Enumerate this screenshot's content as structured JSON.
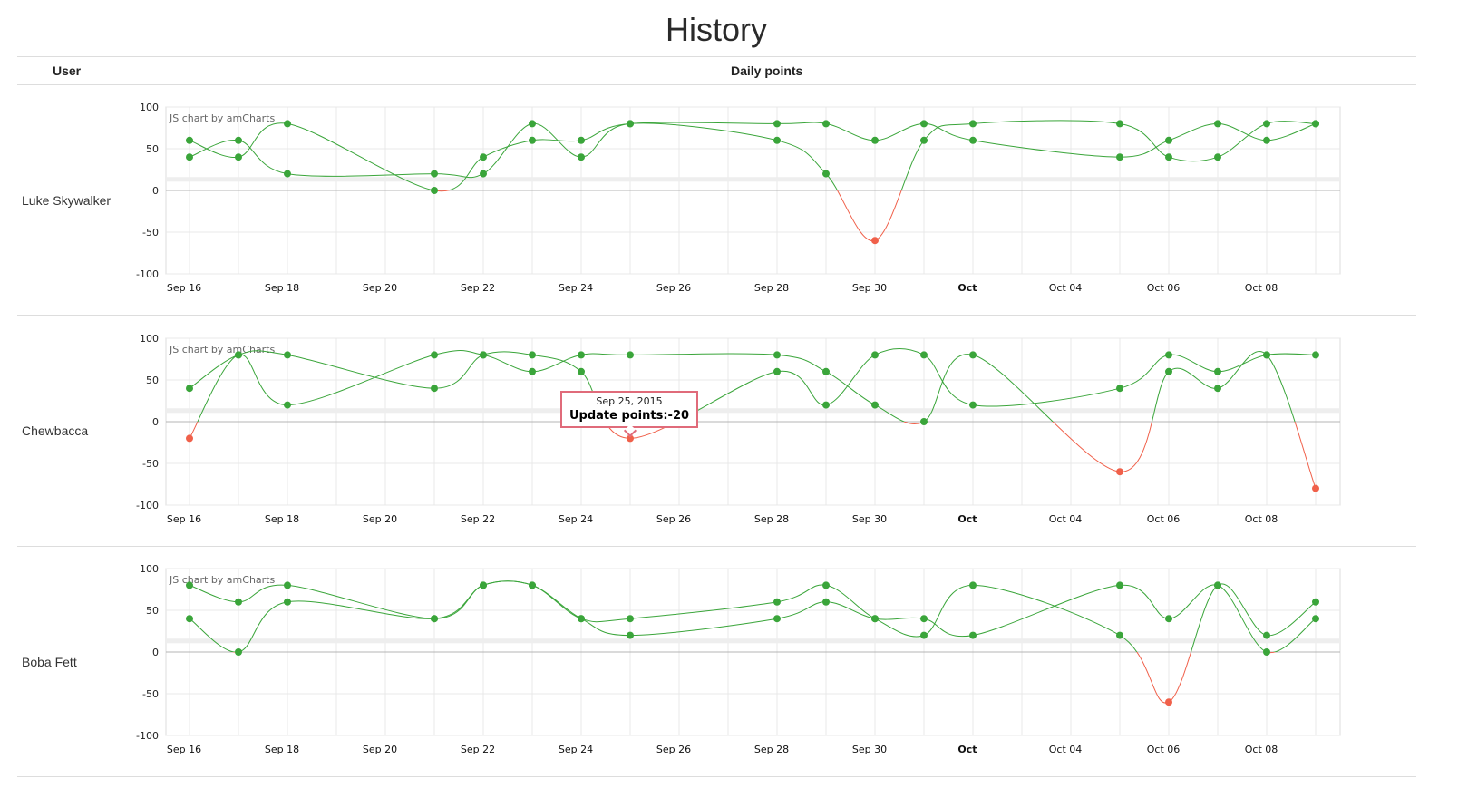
{
  "page": {
    "title": "History"
  },
  "table": {
    "col_user": "User",
    "col_points": "Daily points"
  },
  "colors": {
    "positive": "#3aa53a",
    "negative": "#f0604a",
    "tooltip_border": "#e06b7a"
  },
  "watermark": "JS chart by amCharts",
  "tooltip": {
    "date": "Sep 25, 2015",
    "value": "Update points:-20"
  },
  "chart_data": [
    {
      "user": "Luke Skywalker",
      "type": "line",
      "x_ticks": [
        "Sep 16",
        "Sep 18",
        "Sep 20",
        "Sep 22",
        "Sep 24",
        "Sep 26",
        "Sep 28",
        "Sep 30",
        "Oct",
        "Oct 04",
        "Oct 06",
        "Oct 08"
      ],
      "ylim": [
        -100,
        100
      ],
      "y_ticks": [
        100,
        50,
        0,
        -50,
        -100
      ],
      "series": [
        {
          "points": [
            [
              "2015-09-16",
              60
            ],
            [
              "2015-09-17",
              40
            ],
            [
              "2015-09-18",
              80
            ],
            [
              "2015-09-21",
              0
            ],
            [
              "2015-09-22",
              40
            ],
            [
              "2015-09-23",
              60
            ],
            [
              "2015-09-24",
              60
            ],
            [
              "2015-09-25",
              80
            ],
            [
              "2015-09-28",
              80
            ],
            [
              "2015-09-29",
              80
            ],
            [
              "2015-09-30",
              60
            ],
            [
              "2015-10-01",
              80
            ],
            [
              "2015-10-02",
              60
            ],
            [
              "2015-10-05",
              40
            ],
            [
              "2015-10-06",
              60
            ],
            [
              "2015-10-07",
              80
            ],
            [
              "2015-10-08",
              60
            ],
            [
              "2015-10-09",
              80
            ]
          ]
        },
        {
          "points": [
            [
              "2015-09-16",
              40
            ],
            [
              "2015-09-17",
              60
            ],
            [
              "2015-09-18",
              20
            ],
            [
              "2015-09-21",
              20
            ],
            [
              "2015-09-22",
              20
            ],
            [
              "2015-09-23",
              80
            ],
            [
              "2015-09-24",
              40
            ],
            [
              "2015-09-25",
              80
            ],
            [
              "2015-09-28",
              60
            ],
            [
              "2015-09-29",
              20
            ],
            [
              "2015-09-30",
              -60
            ],
            [
              "2015-10-01",
              60
            ],
            [
              "2015-10-02",
              80
            ],
            [
              "2015-10-05",
              80
            ],
            [
              "2015-10-06",
              40
            ],
            [
              "2015-10-07",
              40
            ],
            [
              "2015-10-08",
              80
            ],
            [
              "2015-10-09",
              80
            ]
          ]
        }
      ]
    },
    {
      "user": "Chewbacca",
      "type": "line",
      "x_ticks": [
        "Sep 16",
        "Sep 18",
        "Sep 20",
        "Sep 22",
        "Sep 24",
        "Sep 26",
        "Sep 28",
        "Sep 30",
        "Oct",
        "Oct 04",
        "Oct 06",
        "Oct 08"
      ],
      "ylim": [
        -100,
        100
      ],
      "y_ticks": [
        100,
        50,
        0,
        -50,
        -100
      ],
      "series": [
        {
          "points": [
            [
              "2015-09-16",
              40
            ],
            [
              "2015-09-17",
              80
            ],
            [
              "2015-09-18",
              80
            ],
            [
              "2015-09-21",
              40
            ],
            [
              "2015-09-22",
              80
            ],
            [
              "2015-09-23",
              80
            ],
            [
              "2015-09-24",
              60
            ],
            [
              "2015-09-25",
              -20
            ],
            [
              "2015-09-28",
              60
            ],
            [
              "2015-09-29",
              20
            ],
            [
              "2015-09-30",
              80
            ],
            [
              "2015-10-01",
              80
            ],
            [
              "2015-10-02",
              20
            ],
            [
              "2015-10-05",
              40
            ],
            [
              "2015-10-06",
              80
            ],
            [
              "2015-10-07",
              60
            ],
            [
              "2015-10-08",
              80
            ],
            [
              "2015-10-09",
              80
            ]
          ]
        },
        {
          "points": [
            [
              "2015-09-16",
              -20
            ],
            [
              "2015-09-17",
              80
            ],
            [
              "2015-09-18",
              20
            ],
            [
              "2015-09-21",
              80
            ],
            [
              "2015-09-22",
              80
            ],
            [
              "2015-09-23",
              60
            ],
            [
              "2015-09-24",
              80
            ],
            [
              "2015-09-25",
              80
            ],
            [
              "2015-09-28",
              80
            ],
            [
              "2015-09-29",
              60
            ],
            [
              "2015-09-30",
              20
            ],
            [
              "2015-10-01",
              0
            ],
            [
              "2015-10-02",
              80
            ],
            [
              "2015-10-05",
              -60
            ],
            [
              "2015-10-06",
              60
            ],
            [
              "2015-10-07",
              40
            ],
            [
              "2015-10-08",
              80
            ],
            [
              "2015-10-09",
              -80
            ]
          ]
        }
      ]
    },
    {
      "user": "Boba Fett",
      "type": "line",
      "x_ticks": [
        "Sep 16",
        "Sep 18",
        "Sep 20",
        "Sep 22",
        "Sep 24",
        "Sep 26",
        "Sep 28",
        "Sep 30",
        "Oct",
        "Oct 04",
        "Oct 06",
        "Oct 08"
      ],
      "ylim": [
        -100,
        100
      ],
      "y_ticks": [
        100,
        50,
        0,
        -50,
        -100
      ],
      "series": [
        {
          "points": [
            [
              "2015-09-16",
              80
            ],
            [
              "2015-09-17",
              60
            ],
            [
              "2015-09-18",
              80
            ],
            [
              "2015-09-21",
              40
            ],
            [
              "2015-09-22",
              80
            ],
            [
              "2015-09-23",
              80
            ],
            [
              "2015-09-24",
              40
            ],
            [
              "2015-09-25",
              40
            ],
            [
              "2015-09-28",
              60
            ],
            [
              "2015-09-29",
              80
            ],
            [
              "2015-09-30",
              40
            ],
            [
              "2015-10-01",
              20
            ],
            [
              "2015-10-02",
              80
            ],
            [
              "2015-10-05",
              20
            ],
            [
              "2015-10-06",
              -60
            ],
            [
              "2015-10-07",
              80
            ],
            [
              "2015-10-08",
              20
            ],
            [
              "2015-10-09",
              60
            ]
          ]
        },
        {
          "points": [
            [
              "2015-09-16",
              40
            ],
            [
              "2015-09-17",
              0
            ],
            [
              "2015-09-18",
              60
            ],
            [
              "2015-09-21",
              40
            ],
            [
              "2015-09-22",
              80
            ],
            [
              "2015-09-23",
              80
            ],
            [
              "2015-09-24",
              40
            ],
            [
              "2015-09-25",
              20
            ],
            [
              "2015-09-28",
              40
            ],
            [
              "2015-09-29",
              60
            ],
            [
              "2015-09-30",
              40
            ],
            [
              "2015-10-01",
              40
            ],
            [
              "2015-10-02",
              20
            ],
            [
              "2015-10-05",
              80
            ],
            [
              "2015-10-06",
              40
            ],
            [
              "2015-10-07",
              80
            ],
            [
              "2015-10-08",
              0
            ],
            [
              "2015-10-09",
              40
            ]
          ]
        }
      ]
    }
  ]
}
